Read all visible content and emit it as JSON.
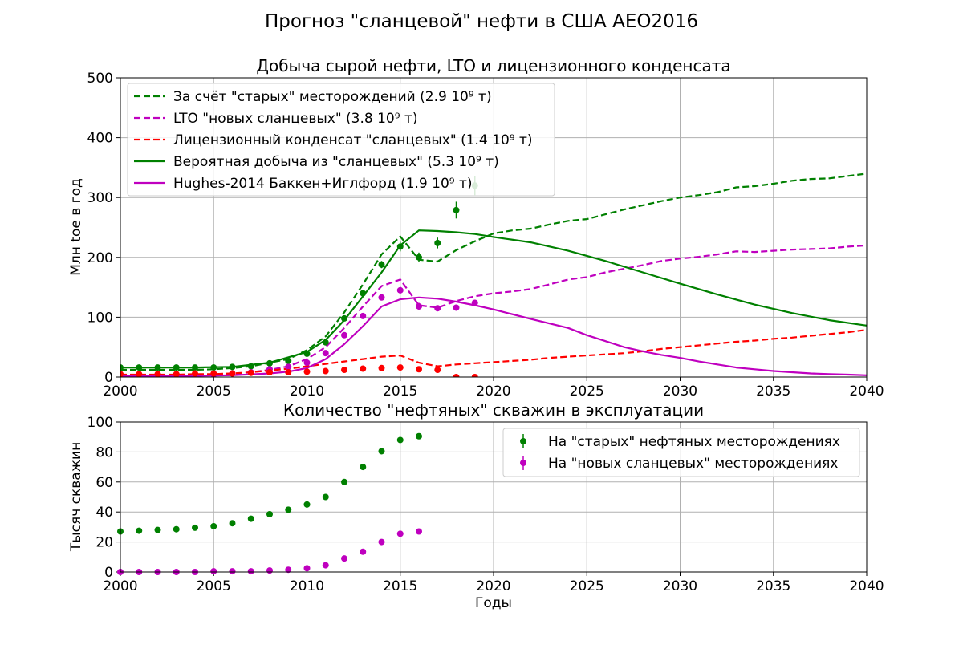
{
  "figure_title": "Прогноз \"сланцевой\" нефти в США AEO2016",
  "colors": {
    "green": "#008000",
    "magenta": "#bf00bf",
    "red": "#ff0000",
    "grid": "#b0b0b0"
  },
  "chart_data": [
    {
      "type": "line",
      "title": "Добыча сырой нефти, LTO и лицензионного конденсата",
      "xlabel": "",
      "ylabel": "Млн toe в год",
      "xlim": [
        2000,
        2040
      ],
      "ylim": [
        0,
        500
      ],
      "xticks": [
        "2000",
        "2005",
        "2010",
        "2015",
        "2020",
        "2025",
        "2030",
        "2035",
        "2040"
      ],
      "yticks": [
        "0",
        "100",
        "200",
        "300",
        "400",
        "500"
      ],
      "grid": true,
      "legend_position": "top-left",
      "series": [
        {
          "name": "За счёт \"старых\" месторождений (2.9 10⁹ т)",
          "style": "dashed",
          "color": "#008000",
          "x": [
            2000,
            2001,
            2002,
            2003,
            2004,
            2005,
            2006,
            2007,
            2008,
            2009,
            2010,
            2011,
            2012,
            2013,
            2014,
            2015,
            2016,
            2017,
            2018,
            2019,
            2020,
            2021,
            2022,
            2023,
            2024,
            2025,
            2026,
            2027,
            2028,
            2029,
            2030,
            2031,
            2032,
            2033,
            2034,
            2035,
            2036,
            2037,
            2038,
            2039,
            2040
          ],
          "y": [
            12,
            12,
            12,
            12,
            12,
            13,
            15,
            18,
            24,
            30,
            45,
            68,
            108,
            155,
            205,
            235,
            196,
            193,
            212,
            227,
            240,
            245,
            248,
            255,
            261,
            264,
            272,
            280,
            287,
            294,
            300,
            304,
            309,
            317,
            319,
            323,
            328,
            331,
            332,
            336,
            340
          ]
        },
        {
          "name": "LTO \"новых сланцевых\" (3.8 10⁹ т)",
          "style": "dashed",
          "color": "#bf00bf",
          "x": [
            2000,
            2001,
            2002,
            2003,
            2004,
            2005,
            2006,
            2007,
            2008,
            2009,
            2010,
            2011,
            2012,
            2013,
            2014,
            2015,
            2016,
            2017,
            2018,
            2019,
            2020,
            2021,
            2022,
            2023,
            2024,
            2025,
            2026,
            2027,
            2028,
            2029,
            2030,
            2031,
            2032,
            2033,
            2034,
            2035,
            2036,
            2037,
            2038,
            2039,
            2040
          ],
          "y": [
            3,
            3,
            3,
            3,
            3,
            4,
            5,
            8,
            12,
            18,
            30,
            50,
            82,
            118,
            152,
            163,
            120,
            116,
            127,
            135,
            140,
            143,
            147,
            155,
            163,
            167,
            175,
            181,
            187,
            194,
            198,
            201,
            205,
            210,
            209,
            211,
            213,
            214,
            215,
            218,
            220
          ]
        },
        {
          "name": "Лицензионный конденсат \"сланцевых\" (1.4 10⁹ т)",
          "style": "dashed",
          "color": "#ff0000",
          "x": [
            2000,
            2001,
            2002,
            2003,
            2004,
            2005,
            2006,
            2007,
            2008,
            2009,
            2010,
            2011,
            2012,
            2013,
            2014,
            2015,
            2016,
            2017,
            2018,
            2019,
            2020,
            2021,
            2022,
            2023,
            2024,
            2025,
            2026,
            2027,
            2028,
            2029,
            2030,
            2031,
            2032,
            2033,
            2034,
            2035,
            2036,
            2037,
            2038,
            2039,
            2040
          ],
          "y": [
            4,
            4,
            4,
            4,
            5,
            5,
            6,
            8,
            11,
            14,
            18,
            22,
            26,
            30,
            34,
            36,
            24,
            18,
            21,
            23,
            25,
            27,
            29,
            32,
            34,
            36,
            38,
            40,
            43,
            47,
            50,
            53,
            56,
            59,
            61,
            64,
            66,
            69,
            72,
            75,
            79
          ]
        },
        {
          "name": "Вероятная добыча из \"сланцевых\" (5.3 10⁹ т)",
          "style": "solid",
          "color": "#008000",
          "x": [
            2000,
            2002,
            2004,
            2006,
            2008,
            2010,
            2011,
            2012,
            2013,
            2014,
            2015,
            2016,
            2017,
            2018,
            2019,
            2020,
            2022,
            2024,
            2026,
            2028,
            2030,
            2032,
            2034,
            2036,
            2038,
            2040
          ],
          "y": [
            16,
            16,
            16,
            17,
            24,
            42,
            62,
            95,
            135,
            175,
            220,
            245,
            244,
            242,
            239,
            234,
            225,
            211,
            194,
            175,
            156,
            138,
            121,
            107,
            95,
            86
          ]
        },
        {
          "name": "Hughes-2014 Баккен+Иглфорд (1.9 10⁹ т)",
          "style": "solid",
          "color": "#bf00bf",
          "x": [
            2000,
            2002,
            2004,
            2006,
            2008,
            2009,
            2010,
            2011,
            2012,
            2013,
            2014,
            2015,
            2016,
            2017,
            2018,
            2019,
            2020,
            2022,
            2024,
            2025,
            2026,
            2027,
            2028,
            2029,
            2030,
            2031,
            2032,
            2033,
            2034,
            2035,
            2036,
            2037,
            2038,
            2039,
            2040
          ],
          "y": [
            2,
            2,
            2,
            3,
            6,
            9,
            15,
            30,
            55,
            85,
            118,
            130,
            133,
            131,
            126,
            120,
            113,
            97,
            82,
            70,
            60,
            50,
            43,
            37,
            32,
            26,
            21,
            16,
            13,
            10,
            8,
            6,
            5,
            4,
            3
          ]
        },
        {
          "name": "",
          "style": "points",
          "color": "#008000",
          "x": [
            2000,
            2001,
            2002,
            2003,
            2004,
            2005,
            2006,
            2007,
            2008,
            2009,
            2010,
            2011,
            2012,
            2013,
            2014,
            2015,
            2016,
            2017,
            2018,
            2019
          ],
          "y": [
            16,
            16,
            16,
            16,
            16,
            16,
            17,
            18,
            23,
            27,
            39,
            58,
            98,
            140,
            188,
            218,
            200,
            224,
            279,
            320
          ],
          "error": [
            2,
            2,
            2,
            2,
            2,
            2,
            2,
            2,
            2,
            3,
            3,
            4,
            4,
            5,
            6,
            8,
            8,
            9,
            14,
            16
          ]
        },
        {
          "name": "",
          "style": "points",
          "color": "#bf00bf",
          "x": [
            2000,
            2001,
            2002,
            2003,
            2004,
            2005,
            2006,
            2007,
            2008,
            2009,
            2010,
            2011,
            2012,
            2013,
            2014,
            2015,
            2016,
            2017,
            2018,
            2019
          ],
          "y": [
            3,
            3,
            3,
            3,
            4,
            4,
            6,
            8,
            13,
            17,
            24,
            40,
            70,
            102,
            133,
            145,
            118,
            115,
            116,
            124
          ],
          "error": [
            1,
            1,
            1,
            1,
            1,
            1,
            1,
            1,
            1,
            2,
            2,
            3,
            3,
            4,
            5,
            6,
            6,
            5,
            5,
            5
          ]
        },
        {
          "name": "",
          "style": "points",
          "color": "#ff0000",
          "x": [
            2000,
            2001,
            2002,
            2003,
            2004,
            2005,
            2006,
            2007,
            2008,
            2009,
            2010,
            2011,
            2012,
            2013,
            2014,
            2015,
            2016,
            2017,
            2018,
            2019
          ],
          "y": [
            5,
            5,
            5,
            5,
            6,
            6,
            6,
            7,
            8,
            8,
            9,
            10,
            12,
            14,
            15,
            16,
            13,
            12,
            0,
            0
          ],
          "error": [
            0,
            0,
            0,
            0,
            0,
            0,
            0,
            0,
            0,
            0,
            0,
            0,
            0,
            0,
            0,
            0,
            0,
            0,
            0,
            0
          ]
        }
      ]
    },
    {
      "type": "scatter",
      "title": "Количество \"нефтяных\" скважин в эксплуатации",
      "xlabel": "Годы",
      "ylabel": "Тысяч скважин",
      "xlim": [
        2000,
        2040
      ],
      "ylim": [
        0,
        100
      ],
      "xticks": [
        "2000",
        "2005",
        "2010",
        "2015",
        "2020",
        "2025",
        "2030",
        "2035",
        "2040"
      ],
      "yticks": [
        "0",
        "20",
        "40",
        "60",
        "80",
        "100"
      ],
      "grid": true,
      "legend_position": "top-right",
      "series": [
        {
          "name": "На \"старых\" нефтяных месторождениях",
          "color": "#008000",
          "x": [
            2000,
            2001,
            2002,
            2003,
            2004,
            2005,
            2006,
            2007,
            2008,
            2009,
            2010,
            2011,
            2012,
            2013,
            2014,
            2015,
            2016
          ],
          "y": [
            27,
            27.5,
            28,
            28.5,
            29.5,
            30.5,
            32.5,
            35.5,
            38.5,
            41.5,
            45,
            50,
            60,
            70,
            80.5,
            88,
            90.5
          ]
        },
        {
          "name": "На \"новых сланцевых\" месторождениях",
          "color": "#bf00bf",
          "x": [
            2000,
            2001,
            2002,
            2003,
            2004,
            2005,
            2006,
            2007,
            2008,
            2009,
            2010,
            2011,
            2012,
            2013,
            2014,
            2015,
            2016
          ],
          "y": [
            0,
            0,
            0,
            0,
            0,
            0.5,
            0.5,
            0.5,
            1,
            1.5,
            2.5,
            4.5,
            9,
            13.5,
            20,
            25.5,
            27
          ]
        }
      ]
    }
  ]
}
